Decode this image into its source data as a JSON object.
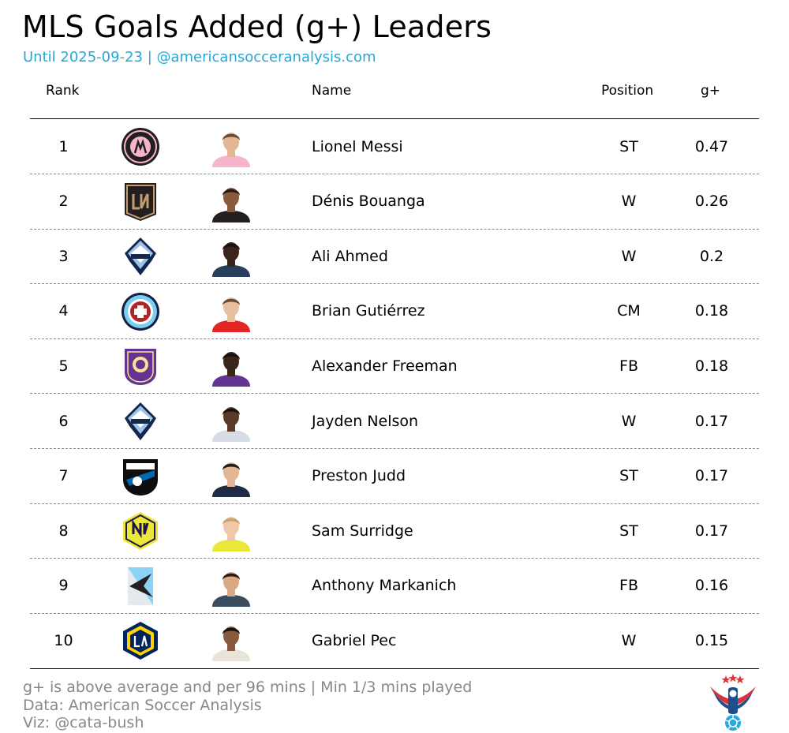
{
  "title": "MLS Goals Added (g+) Leaders",
  "subtitle": "Until 2025-09-23 | @americansocceranalysis.com",
  "columns": {
    "rank": "Rank",
    "name": "Name",
    "position": "Position",
    "gplus": "g+"
  },
  "footer": {
    "line1": "g+ is above average and per 96 mins | Min 1/3 mins played",
    "line2": "Data: American Soccer Analysis",
    "line3": "Viz: @cata-bush"
  },
  "colors": {
    "subtitle": "#28a6d4",
    "footer": "#888888"
  },
  "chart_data": {
    "type": "table",
    "title": "MLS Goals Added (g+) Leaders",
    "rows": [
      {
        "rank": "1",
        "crest": "inter-miami-crest",
        "name": "Lionel Messi",
        "position": "ST",
        "gplus": "0.47"
      },
      {
        "rank": "2",
        "crest": "lafc-crest",
        "name": "Dénis Bouanga",
        "position": "W",
        "gplus": "0.26"
      },
      {
        "rank": "3",
        "crest": "vancouver-whitecaps-crest",
        "name": "Ali Ahmed",
        "position": "W",
        "gplus": "0.2"
      },
      {
        "rank": "4",
        "crest": "chicago-fire-crest",
        "name": "Brian Gutiérrez",
        "position": "CM",
        "gplus": "0.18"
      },
      {
        "rank": "5",
        "crest": "orlando-city-crest",
        "name": "Alexander Freeman",
        "position": "FB",
        "gplus": "0.18"
      },
      {
        "rank": "6",
        "crest": "vancouver-whitecaps-crest",
        "name": "Jayden Nelson",
        "position": "W",
        "gplus": "0.17"
      },
      {
        "rank": "7",
        "crest": "san-jose-earthquakes-crest",
        "name": "Preston Judd",
        "position": "ST",
        "gplus": "0.17"
      },
      {
        "rank": "8",
        "crest": "nashville-sc-crest",
        "name": "Sam Surridge",
        "position": "ST",
        "gplus": "0.17"
      },
      {
        "rank": "9",
        "crest": "minnesota-united-crest",
        "name": "Anthony Markanich",
        "position": "FB",
        "gplus": "0.16"
      },
      {
        "rank": "10",
        "crest": "la-galaxy-crest",
        "name": "Gabriel Pec",
        "position": "W",
        "gplus": "0.15"
      }
    ]
  }
}
